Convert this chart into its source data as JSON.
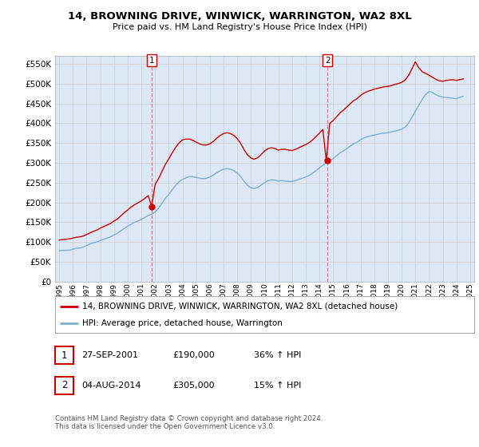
{
  "title": "14, BROWNING DRIVE, WINWICK, WARRINGTON, WA2 8XL",
  "subtitle": "Price paid vs. HM Land Registry's House Price Index (HPI)",
  "legend_house": "14, BROWNING DRIVE, WINWICK, WARRINGTON, WA2 8XL (detached house)",
  "legend_hpi": "HPI: Average price, detached house, Warrington",
  "annotation1_label": "1",
  "annotation1_date": "27-SEP-2001",
  "annotation1_price": "£190,000",
  "annotation1_hpi": "36% ↑ HPI",
  "annotation2_label": "2",
  "annotation2_date": "04-AUG-2014",
  "annotation2_price": "£305,000",
  "annotation2_hpi": "15% ↑ HPI",
  "footer": "Contains HM Land Registry data © Crown copyright and database right 2024.\nThis data is licensed under the Open Government Licence v3.0.",
  "house_color": "#cc0000",
  "hpi_color": "#7bafd4",
  "ylim": [
    0,
    570000
  ],
  "yticks": [
    0,
    50000,
    100000,
    150000,
    200000,
    250000,
    300000,
    350000,
    400000,
    450000,
    500000,
    550000
  ],
  "sale1_year": 2001.75,
  "sale1_price": 190000,
  "sale2_year": 2014.58,
  "sale2_price": 305000,
  "start_year": 1995,
  "end_year": 2025,
  "xtick_years": [
    1995,
    1996,
    1997,
    1998,
    1999,
    2000,
    2001,
    2002,
    2003,
    2004,
    2005,
    2006,
    2007,
    2008,
    2009,
    2010,
    2011,
    2012,
    2013,
    2014,
    2015,
    2016,
    2017,
    2018,
    2019,
    2020,
    2021,
    2022,
    2023,
    2024,
    2025
  ],
  "hpi_data_x": [
    1995.0,
    1995.25,
    1995.5,
    1995.75,
    1996.0,
    1996.25,
    1996.5,
    1996.75,
    1997.0,
    1997.25,
    1997.5,
    1997.75,
    1998.0,
    1998.25,
    1998.5,
    1998.75,
    1999.0,
    1999.25,
    1999.5,
    1999.75,
    2000.0,
    2000.25,
    2000.5,
    2000.75,
    2001.0,
    2001.25,
    2001.5,
    2001.75,
    2002.0,
    2002.25,
    2002.5,
    2002.75,
    2003.0,
    2003.25,
    2003.5,
    2003.75,
    2004.0,
    2004.25,
    2004.5,
    2004.75,
    2005.0,
    2005.25,
    2005.5,
    2005.75,
    2006.0,
    2006.25,
    2006.5,
    2006.75,
    2007.0,
    2007.25,
    2007.5,
    2007.75,
    2008.0,
    2008.25,
    2008.5,
    2008.75,
    2009.0,
    2009.25,
    2009.5,
    2009.75,
    2010.0,
    2010.25,
    2010.5,
    2010.75,
    2011.0,
    2011.25,
    2011.5,
    2011.75,
    2012.0,
    2012.25,
    2012.5,
    2012.75,
    2013.0,
    2013.25,
    2013.5,
    2013.75,
    2014.0,
    2014.25,
    2014.5,
    2014.75,
    2015.0,
    2015.25,
    2015.5,
    2015.75,
    2016.0,
    2016.25,
    2016.5,
    2016.75,
    2017.0,
    2017.25,
    2017.5,
    2017.75,
    2018.0,
    2018.25,
    2018.5,
    2018.75,
    2019.0,
    2019.25,
    2019.5,
    2019.75,
    2020.0,
    2020.25,
    2020.5,
    2020.75,
    2021.0,
    2021.25,
    2021.5,
    2021.75,
    2022.0,
    2022.25,
    2022.5,
    2022.75,
    2023.0,
    2023.25,
    2023.5,
    2023.75,
    2024.0,
    2024.25,
    2024.5
  ],
  "hpi_data_y": [
    78000,
    78500,
    79000,
    79500,
    82000,
    84000,
    85000,
    87000,
    91000,
    95000,
    98000,
    100000,
    104000,
    107000,
    110000,
    113000,
    118000,
    122000,
    128000,
    134000,
    140000,
    145000,
    150000,
    153000,
    157000,
    162000,
    167000,
    170000,
    176000,
    185000,
    198000,
    210000,
    220000,
    232000,
    243000,
    252000,
    258000,
    262000,
    265000,
    265000,
    263000,
    261000,
    260000,
    261000,
    264000,
    269000,
    275000,
    280000,
    284000,
    285000,
    284000,
    280000,
    274000,
    265000,
    253000,
    243000,
    237000,
    235000,
    238000,
    244000,
    250000,
    255000,
    257000,
    256000,
    254000,
    255000,
    254000,
    253000,
    253000,
    255000,
    258000,
    261000,
    264000,
    268000,
    274000,
    280000,
    287000,
    294000,
    300000,
    305000,
    311000,
    318000,
    325000,
    330000,
    336000,
    342000,
    348000,
    352000,
    358000,
    363000,
    366000,
    368000,
    370000,
    372000,
    374000,
    375000,
    376000,
    378000,
    380000,
    382000,
    385000,
    390000,
    400000,
    415000,
    430000,
    445000,
    460000,
    472000,
    480000,
    478000,
    472000,
    468000,
    466000,
    465000,
    464000,
    463000,
    462000,
    465000,
    468000
  ],
  "house_data_x": [
    1995.0,
    1995.25,
    1995.5,
    1995.75,
    1996.0,
    1996.25,
    1996.5,
    1996.75,
    1997.0,
    1997.25,
    1997.5,
    1997.75,
    1998.0,
    1998.25,
    1998.5,
    1998.75,
    1999.0,
    1999.25,
    1999.5,
    1999.75,
    2000.0,
    2000.25,
    2000.5,
    2000.75,
    2001.0,
    2001.25,
    2001.5,
    2001.75,
    2002.0,
    2002.25,
    2002.5,
    2002.75,
    2003.0,
    2003.25,
    2003.5,
    2003.75,
    2004.0,
    2004.25,
    2004.5,
    2004.75,
    2005.0,
    2005.25,
    2005.5,
    2005.75,
    2006.0,
    2006.25,
    2006.5,
    2006.75,
    2007.0,
    2007.25,
    2007.5,
    2007.75,
    2008.0,
    2008.25,
    2008.5,
    2008.75,
    2009.0,
    2009.25,
    2009.5,
    2009.75,
    2010.0,
    2010.25,
    2010.5,
    2010.75,
    2011.0,
    2011.25,
    2011.5,
    2011.75,
    2012.0,
    2012.25,
    2012.5,
    2012.75,
    2013.0,
    2013.25,
    2013.5,
    2013.75,
    2014.0,
    2014.25,
    2014.5,
    2014.75,
    2015.0,
    2015.25,
    2015.5,
    2015.75,
    2016.0,
    2016.25,
    2016.5,
    2016.75,
    2017.0,
    2017.25,
    2017.5,
    2017.75,
    2018.0,
    2018.25,
    2018.5,
    2018.75,
    2019.0,
    2019.25,
    2019.5,
    2019.75,
    2020.0,
    2020.25,
    2020.5,
    2020.75,
    2021.0,
    2021.25,
    2021.5,
    2021.75,
    2022.0,
    2022.25,
    2022.5,
    2022.75,
    2023.0,
    2023.25,
    2023.5,
    2023.75,
    2024.0,
    2024.25,
    2024.5
  ],
  "house_data_y": [
    105000,
    106000,
    107000,
    108000,
    110000,
    112000,
    113000,
    115000,
    119000,
    123000,
    127000,
    130000,
    135000,
    139000,
    143000,
    147000,
    153000,
    158000,
    166000,
    174000,
    181000,
    188000,
    194000,
    199000,
    204000,
    210000,
    217000,
    190000,
    245000,
    260000,
    278000,
    296000,
    310000,
    325000,
    339000,
    350000,
    358000,
    360000,
    360000,
    357000,
    352000,
    348000,
    345000,
    345000,
    348000,
    354000,
    362000,
    369000,
    374000,
    376000,
    374000,
    369000,
    361000,
    349000,
    333000,
    320000,
    312000,
    309000,
    313000,
    321000,
    330000,
    336000,
    338000,
    336000,
    332000,
    334000,
    334000,
    332000,
    331000,
    334000,
    338000,
    342000,
    346000,
    351000,
    358000,
    366000,
    375000,
    384000,
    305000,
    399000,
    407000,
    416000,
    426000,
    433000,
    441000,
    449000,
    457000,
    462000,
    470000,
    476000,
    480000,
    483000,
    486000,
    488000,
    490000,
    492000,
    493000,
    495000,
    498000,
    500000,
    503000,
    509000,
    520000,
    537000,
    555000,
    540000,
    530000,
    526000,
    521000,
    516000,
    511000,
    507000,
    506000,
    508000,
    509000,
    510000,
    508000,
    510000,
    512000
  ],
  "bg_color": "#ffffff",
  "grid_color": "#cccccc",
  "plot_bg": "#dce8f5"
}
